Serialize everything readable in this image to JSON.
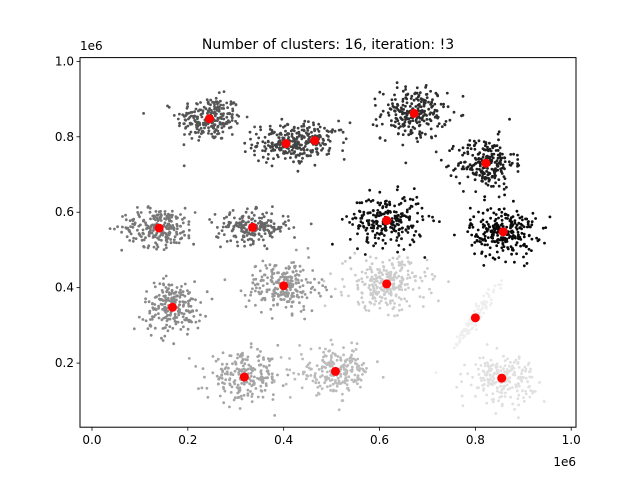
{
  "chart_data": {
    "type": "scatter",
    "title": "Number of clusters: 16, iteration: !3",
    "xlabel": "",
    "ylabel": "",
    "x_offset_label": "1e6",
    "y_offset_label": "1e6",
    "xlim": [
      -0.025,
      1.01
    ],
    "ylim": [
      0.03,
      1.01
    ],
    "x_ticks": [
      0.0,
      0.2,
      0.4,
      0.6,
      0.8,
      1.0
    ],
    "x_tick_labels": [
      "0.0",
      "0.2",
      "0.4",
      "0.6",
      "0.8",
      "1.0"
    ],
    "y_ticks": [
      0.2,
      0.4,
      0.6,
      0.8,
      1.0
    ],
    "y_tick_labels": [
      "0.2",
      "0.4",
      "0.6",
      "0.8",
      "1.0"
    ],
    "grid": false,
    "legend": "none",
    "centroid_color": "#ff0000",
    "clusters": [
      {
        "center": [
          0.245,
          0.848
        ],
        "spread": [
          0.04,
          0.035
        ],
        "color": "#555555",
        "n": 240
      },
      {
        "center": [
          0.4,
          0.782
        ],
        "spread": [
          0.038,
          0.03
        ],
        "color": "#444444",
        "n": 180
      },
      {
        "center": [
          0.465,
          0.79
        ],
        "spread": [
          0.04,
          0.028
        ],
        "color": "#444444",
        "n": 120
      },
      {
        "center": [
          0.672,
          0.862
        ],
        "spread": [
          0.04,
          0.04
        ],
        "color": "#2e2e2e",
        "n": 240
      },
      {
        "center": [
          0.822,
          0.73
        ],
        "spread": [
          0.035,
          0.04
        ],
        "color": "#1e1e1e",
        "n": 230
      },
      {
        "center": [
          0.14,
          0.56
        ],
        "spread": [
          0.045,
          0.03
        ],
        "color": "#777777",
        "n": 230
      },
      {
        "center": [
          0.335,
          0.56
        ],
        "spread": [
          0.045,
          0.025
        ],
        "color": "#666666",
        "n": 200
      },
      {
        "center": [
          0.615,
          0.578
        ],
        "spread": [
          0.045,
          0.04
        ],
        "color": "#111111",
        "n": 240
      },
      {
        "center": [
          0.858,
          0.548
        ],
        "spread": [
          0.04,
          0.04
        ],
        "color": "#0a0a0a",
        "n": 260
      },
      {
        "center": [
          0.168,
          0.35
        ],
        "spread": [
          0.035,
          0.04
        ],
        "color": "#8a8a8a",
        "n": 220
      },
      {
        "center": [
          0.4,
          0.405
        ],
        "spread": [
          0.045,
          0.04
        ],
        "color": "#999999",
        "n": 230
      },
      {
        "center": [
          0.615,
          0.41
        ],
        "spread": [
          0.05,
          0.04
        ],
        "color": "#cccccc",
        "n": 260
      },
      {
        "center": [
          0.8,
          0.32
        ],
        "spread": [
          0.02,
          0.05
        ],
        "color": "#eeeeee",
        "n": 100
      },
      {
        "center": [
          0.318,
          0.163
        ],
        "spread": [
          0.045,
          0.035
        ],
        "color": "#a5a5a5",
        "n": 220
      },
      {
        "center": [
          0.508,
          0.178
        ],
        "spread": [
          0.045,
          0.035
        ],
        "color": "#bbbbbb",
        "n": 220
      },
      {
        "center": [
          0.855,
          0.16
        ],
        "spread": [
          0.04,
          0.035
        ],
        "color": "#e0e0e0",
        "n": 220
      }
    ],
    "centroids": [
      {
        "x": 0.245,
        "y": 0.848
      },
      {
        "x": 0.405,
        "y": 0.782
      },
      {
        "x": 0.465,
        "y": 0.79
      },
      {
        "x": 0.672,
        "y": 0.862
      },
      {
        "x": 0.822,
        "y": 0.73
      },
      {
        "x": 0.14,
        "y": 0.558
      },
      {
        "x": 0.335,
        "y": 0.56
      },
      {
        "x": 0.615,
        "y": 0.578
      },
      {
        "x": 0.858,
        "y": 0.548
      },
      {
        "x": 0.168,
        "y": 0.348
      },
      {
        "x": 0.4,
        "y": 0.405
      },
      {
        "x": 0.615,
        "y": 0.41
      },
      {
        "x": 0.8,
        "y": 0.32
      },
      {
        "x": 0.318,
        "y": 0.163
      },
      {
        "x": 0.508,
        "y": 0.178
      },
      {
        "x": 0.855,
        "y": 0.16
      }
    ]
  }
}
